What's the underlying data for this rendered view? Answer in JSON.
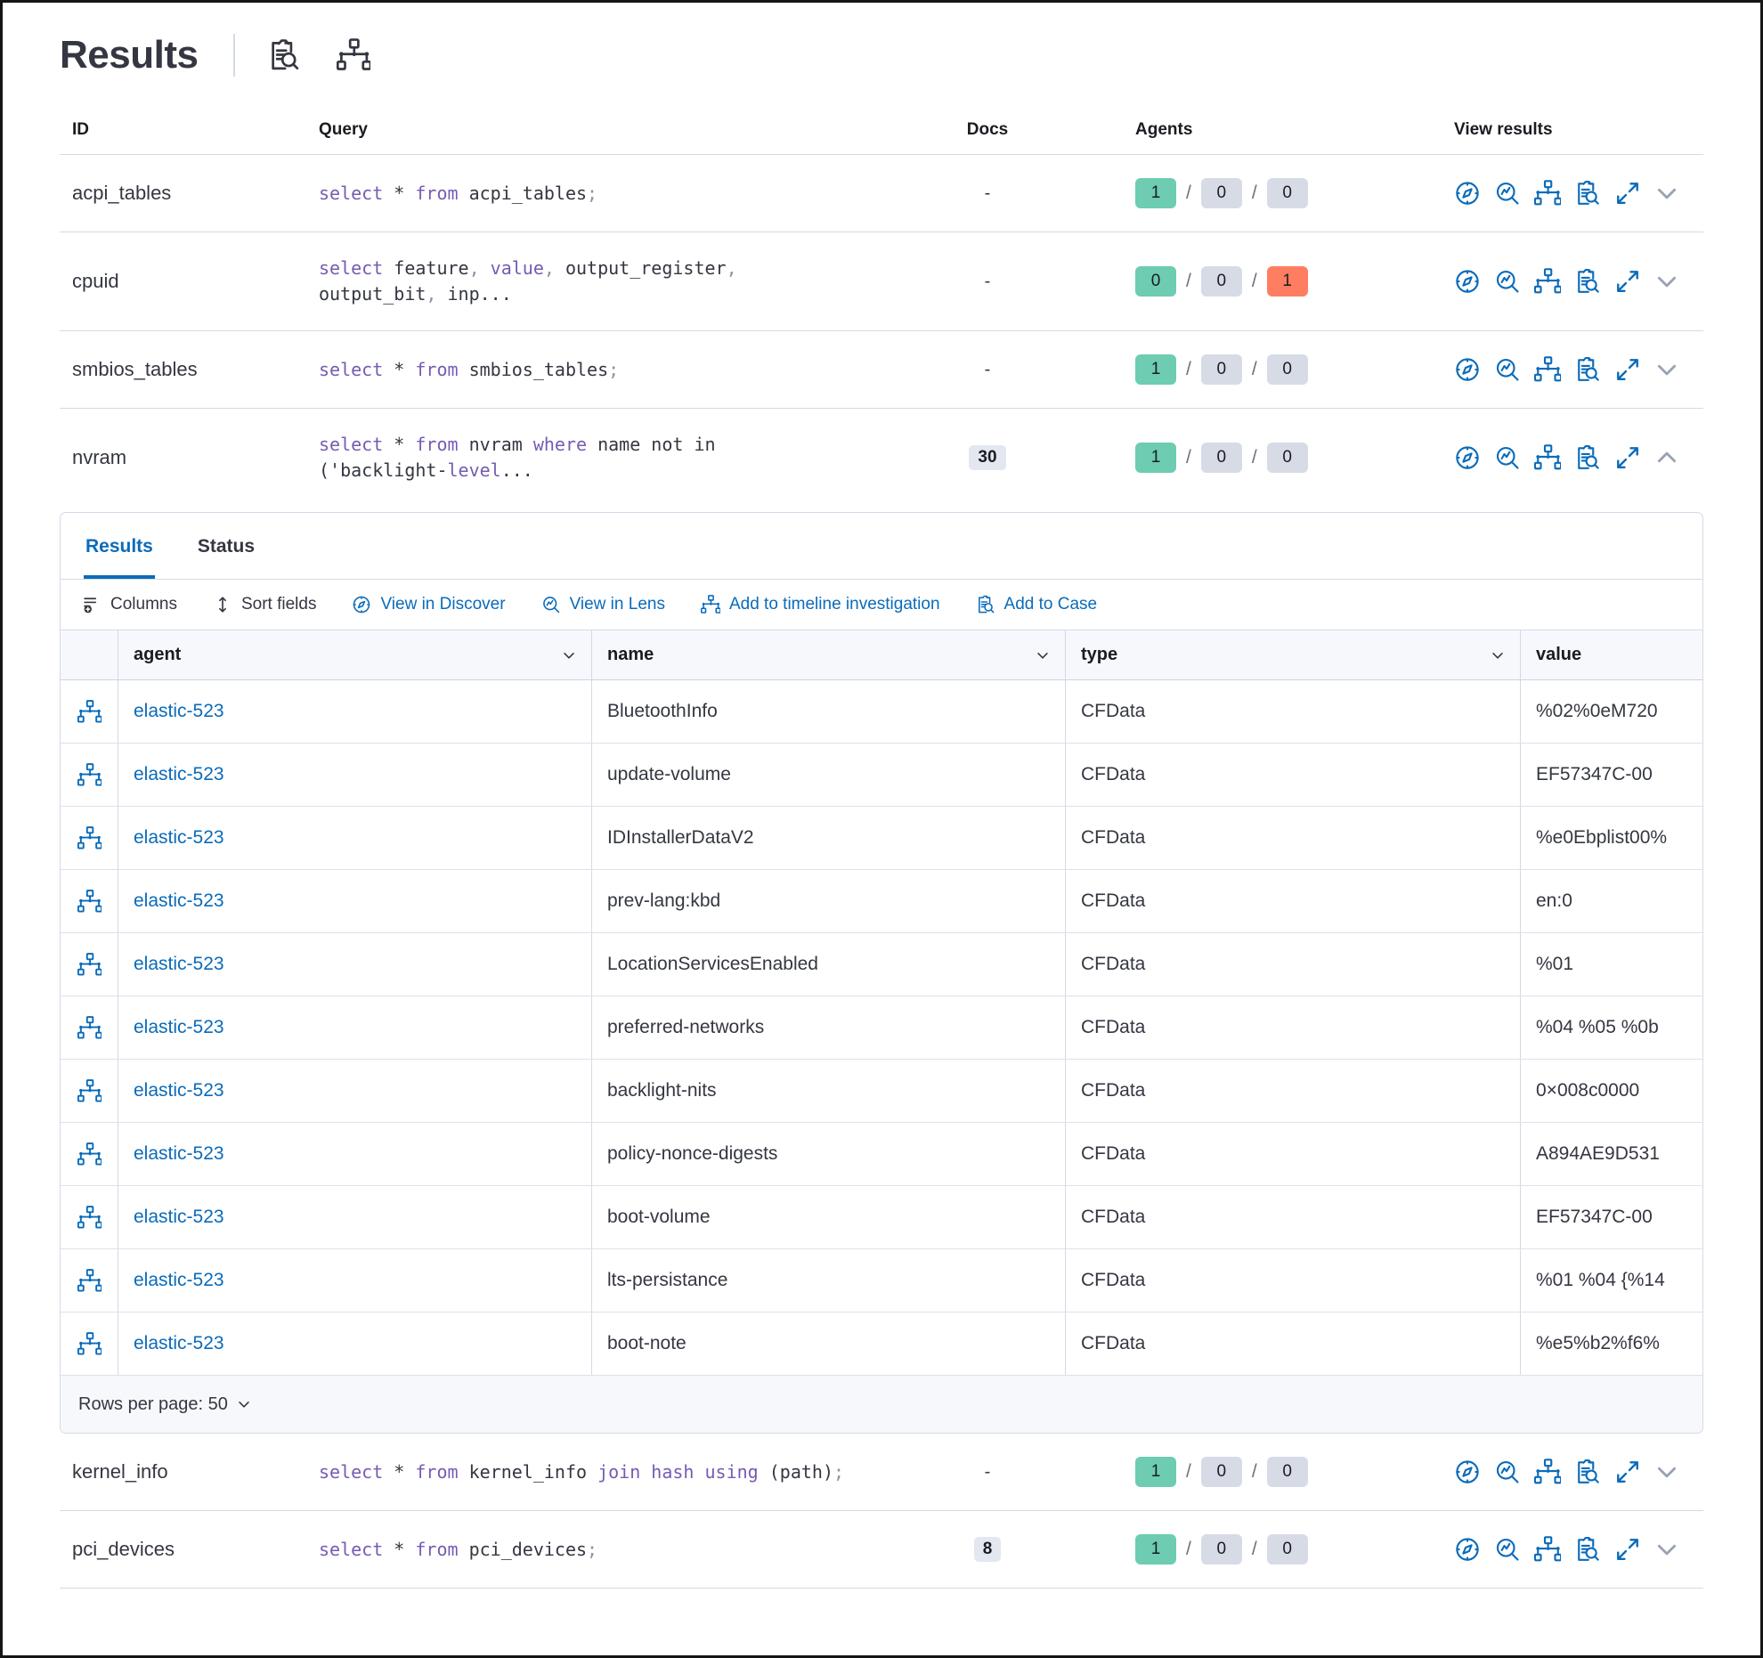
{
  "colors": {
    "accent": "#0a6bba",
    "success_badge": "#6dccb1",
    "danger_badge": "#ff7e62",
    "neutral_badge": "#d7dbe6"
  },
  "header": {
    "title": "Results",
    "icons": [
      "inspect",
      "timeline"
    ]
  },
  "table": {
    "headers": {
      "id": "ID",
      "query": "Query",
      "docs": "Docs",
      "agents": "Agents",
      "view": "View results"
    },
    "view_icons": [
      "discover",
      "lens",
      "timeline",
      "case",
      "expand"
    ],
    "rows": [
      {
        "id": "acpi_tables",
        "docs": "-",
        "docs_badge": false,
        "expanded": false,
        "agents": [
          {
            "text": "1",
            "color": "success"
          },
          {
            "text": "0",
            "color": "neutral"
          },
          {
            "text": "0",
            "color": "neutral"
          }
        ],
        "query": [
          {
            "t": "select",
            "c": "kw"
          },
          {
            "t": " * ",
            "c": "tx"
          },
          {
            "t": "from",
            "c": "kw"
          },
          {
            "t": " acpi_tables",
            "c": "tx"
          },
          {
            "t": ";",
            "c": "pu"
          }
        ]
      },
      {
        "id": "cpuid",
        "docs": "-",
        "docs_badge": false,
        "expanded": false,
        "agents": [
          {
            "text": "0",
            "color": "success"
          },
          {
            "text": "0",
            "color": "neutral"
          },
          {
            "text": "1",
            "color": "danger"
          }
        ],
        "query": [
          {
            "t": "select",
            "c": "kw"
          },
          {
            "t": " feature",
            "c": "tx"
          },
          {
            "t": ",",
            "c": "pu"
          },
          {
            "t": " ",
            "c": "tx"
          },
          {
            "t": "value",
            "c": "kw"
          },
          {
            "t": ",",
            "c": "pu"
          },
          {
            "t": " output_register",
            "c": "tx"
          },
          {
            "t": ",",
            "c": "pu"
          },
          {
            "t": "\n",
            "c": "tx"
          },
          {
            "t": "output_bit",
            "c": "tx"
          },
          {
            "t": ",",
            "c": "pu"
          },
          {
            "t": " inp...",
            "c": "tx"
          }
        ]
      },
      {
        "id": "smbios_tables",
        "docs": "-",
        "docs_badge": false,
        "expanded": false,
        "agents": [
          {
            "text": "1",
            "color": "success"
          },
          {
            "text": "0",
            "color": "neutral"
          },
          {
            "text": "0",
            "color": "neutral"
          }
        ],
        "query": [
          {
            "t": "select",
            "c": "kw"
          },
          {
            "t": " * ",
            "c": "tx"
          },
          {
            "t": "from",
            "c": "kw"
          },
          {
            "t": " smbios_tables",
            "c": "tx"
          },
          {
            "t": ";",
            "c": "pu"
          }
        ]
      },
      {
        "id": "nvram",
        "docs": "30",
        "docs_badge": true,
        "expanded": true,
        "agents": [
          {
            "text": "1",
            "color": "success"
          },
          {
            "text": "0",
            "color": "neutral"
          },
          {
            "text": "0",
            "color": "neutral"
          }
        ],
        "query": [
          {
            "t": "select",
            "c": "kw"
          },
          {
            "t": " * ",
            "c": "tx"
          },
          {
            "t": "from",
            "c": "kw"
          },
          {
            "t": " nvram ",
            "c": "tx"
          },
          {
            "t": "where",
            "c": "kw"
          },
          {
            "t": " name not in",
            "c": "tx"
          },
          {
            "t": "\n('backlight-",
            "c": "tx"
          },
          {
            "t": "level",
            "c": "kw"
          },
          {
            "t": "...",
            "c": "tx"
          }
        ]
      },
      {
        "id": "kernel_info",
        "docs": "-",
        "docs_badge": false,
        "expanded": false,
        "agents": [
          {
            "text": "1",
            "color": "success"
          },
          {
            "text": "0",
            "color": "neutral"
          },
          {
            "text": "0",
            "color": "neutral"
          }
        ],
        "query": [
          {
            "t": "select",
            "c": "kw"
          },
          {
            "t": " * ",
            "c": "tx"
          },
          {
            "t": "from",
            "c": "kw"
          },
          {
            "t": " kernel_info ",
            "c": "tx"
          },
          {
            "t": "join hash using",
            "c": "kw"
          },
          {
            "t": " (path)",
            "c": "tx"
          },
          {
            "t": ";",
            "c": "pu"
          }
        ]
      },
      {
        "id": "pci_devices",
        "docs": "8",
        "docs_badge": true,
        "expanded": false,
        "agents": [
          {
            "text": "1",
            "color": "success"
          },
          {
            "text": "0",
            "color": "neutral"
          },
          {
            "text": "0",
            "color": "neutral"
          }
        ],
        "query": [
          {
            "t": "select",
            "c": "kw"
          },
          {
            "t": " * ",
            "c": "tx"
          },
          {
            "t": "from",
            "c": "kw"
          },
          {
            "t": " pci_devices",
            "c": "tx"
          },
          {
            "t": ";",
            "c": "pu"
          }
        ]
      }
    ]
  },
  "panel": {
    "tabs": [
      {
        "label": "Results",
        "active": true
      },
      {
        "label": "Status",
        "active": false
      }
    ],
    "toolbar": [
      {
        "icon": "columns",
        "label": "Columns",
        "link": false
      },
      {
        "icon": "sort",
        "label": "Sort fields",
        "link": false
      },
      {
        "icon": "discover",
        "label": "View in Discover",
        "link": true
      },
      {
        "icon": "lens",
        "label": "View in Lens",
        "link": true
      },
      {
        "icon": "timeline",
        "label": "Add to timeline investigation",
        "link": true
      },
      {
        "icon": "case",
        "label": "Add to Case",
        "link": true
      }
    ],
    "grid": {
      "columns": [
        "agent",
        "name",
        "type",
        "value"
      ],
      "row_icon": "timeline",
      "rows": [
        {
          "agent": "elastic-523",
          "name": "BluetoothInfo",
          "type": "CFData",
          "value": "%02%0eM720"
        },
        {
          "agent": "elastic-523",
          "name": "update-volume",
          "type": "CFData",
          "value": "EF57347C-00"
        },
        {
          "agent": "elastic-523",
          "name": "IDInstallerDataV2",
          "type": "CFData",
          "value": "%e0Ebplist00%"
        },
        {
          "agent": "elastic-523",
          "name": "prev-lang:kbd",
          "type": "CFData",
          "value": "en:0"
        },
        {
          "agent": "elastic-523",
          "name": "LocationServicesEnabled",
          "type": "CFData",
          "value": "%01"
        },
        {
          "agent": "elastic-523",
          "name": "preferred-networks",
          "type": "CFData",
          "value": "%04 %05 %0b"
        },
        {
          "agent": "elastic-523",
          "name": "backlight-nits",
          "type": "CFData",
          "value": "0×008c0000"
        },
        {
          "agent": "elastic-523",
          "name": "policy-nonce-digests",
          "type": "CFData",
          "value": "A894AE9D531"
        },
        {
          "agent": "elastic-523",
          "name": "boot-volume",
          "type": "CFData",
          "value": "EF57347C-00"
        },
        {
          "agent": "elastic-523",
          "name": "lts-persistance",
          "type": "CFData",
          "value": "%01 %04 {%14"
        },
        {
          "agent": "elastic-523",
          "name": "boot-note",
          "type": "CFData",
          "value": "%e5%b2%f6%"
        }
      ],
      "rows_per_page_label": "Rows per page: 50"
    }
  }
}
